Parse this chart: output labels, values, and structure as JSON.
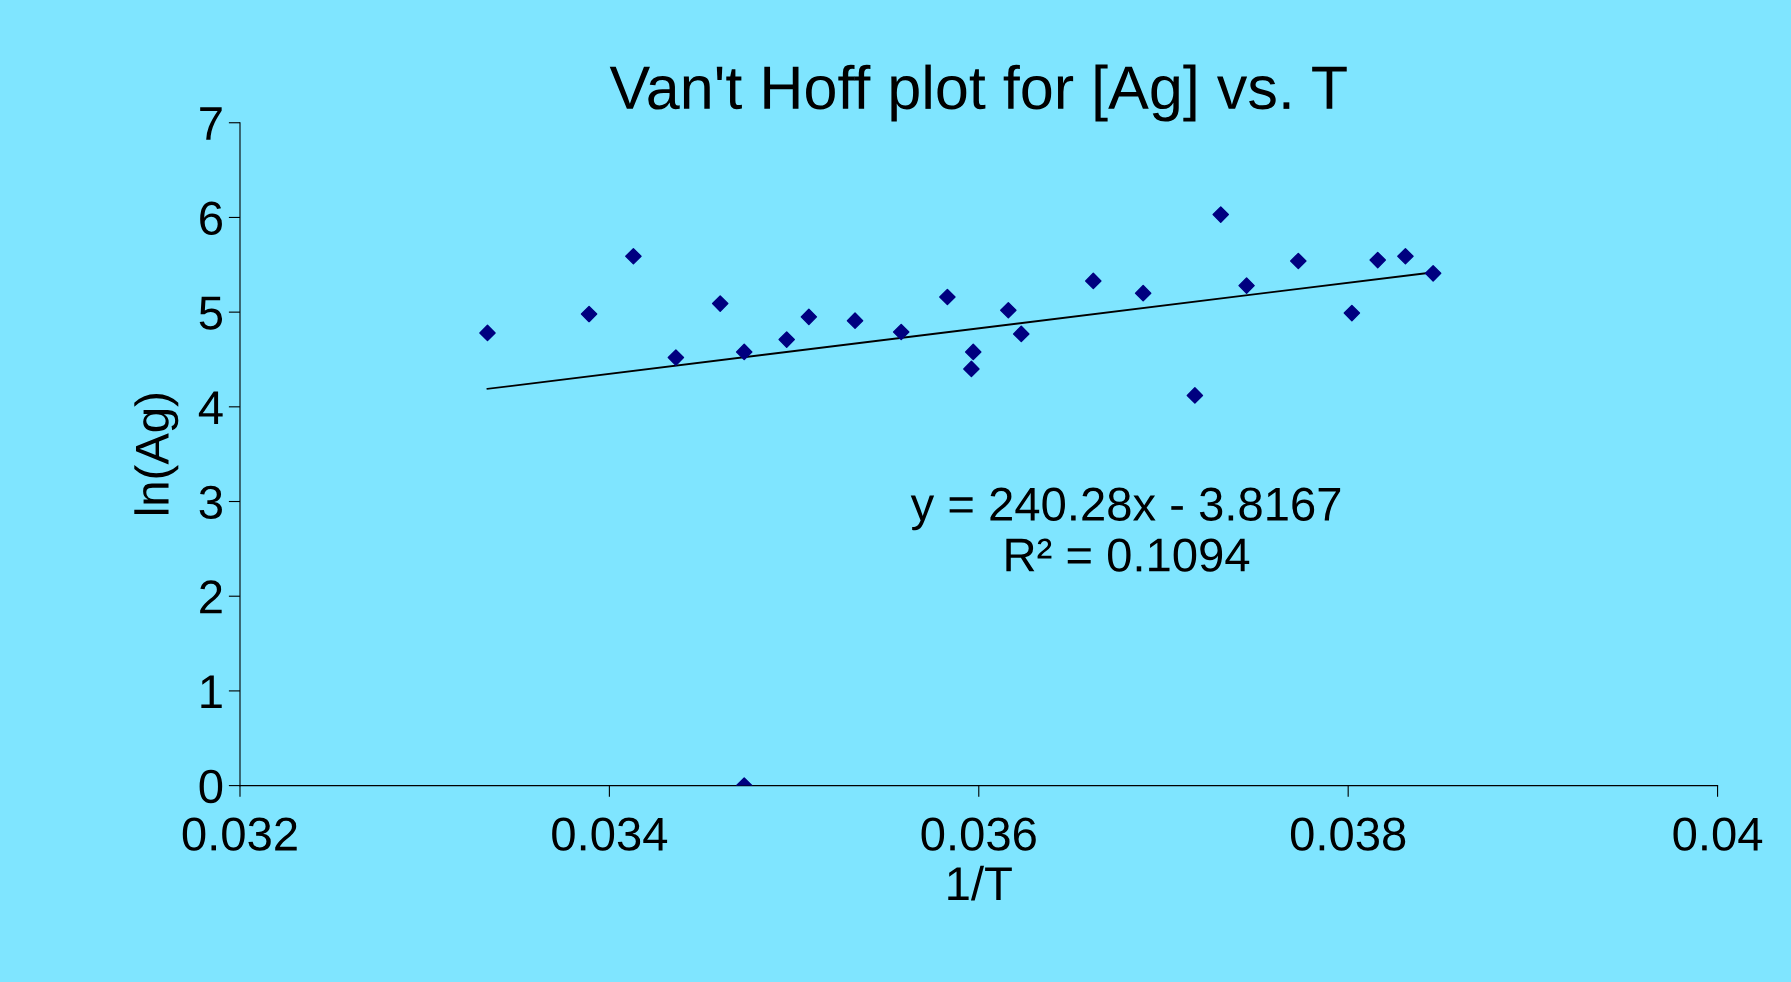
{
  "chart_data": {
    "type": "scatter",
    "title": "Van't Hoff plot for [Ag] vs. T",
    "xlabel": "1/T",
    "ylabel": "ln(Ag)",
    "series": [
      {
        "color": "#000080",
        "marker": "diamond",
        "x": [
          0.03334,
          0.03389,
          0.03413,
          0.03436,
          0.0346,
          0.03473,
          0.03473,
          0.03496,
          0.03508,
          0.03533,
          0.03558,
          0.03583,
          0.03597,
          0.03596,
          0.03616,
          0.03623,
          0.03662,
          0.03689,
          0.03717,
          0.03731,
          0.03745,
          0.03773,
          0.03802,
          0.03816,
          0.03831,
          0.03846
        ],
        "values": [
          4.78,
          4.98,
          5.59,
          4.52,
          5.09,
          4.58,
          0,
          4.71,
          4.95,
          4.91,
          4.79,
          5.16,
          4.58,
          4.4,
          5.02,
          4.77,
          5.33,
          5.2,
          4.12,
          6.03,
          5.28,
          5.54,
          4.99,
          5.55,
          5.59,
          5.41
        ]
      },
      {
        "type": "line",
        "color": "#000000",
        "marker": "none",
        "x": [
          0.03334,
          0.03846
        ],
        "values": [
          4.19,
          5.42
        ]
      }
    ],
    "annotations": [
      "y = 240.28x - 3.8167\nR² = 0.1094"
    ],
    "xlim": [
      0.032,
      0.04
    ],
    "xticks": [
      0.032,
      0.034,
      0.036,
      0.038,
      0.04
    ],
    "ylim": [
      0,
      7
    ],
    "yticks": [
      0,
      1,
      2,
      3,
      4,
      5,
      6,
      7
    ],
    "grid": false,
    "legend": false
  }
}
